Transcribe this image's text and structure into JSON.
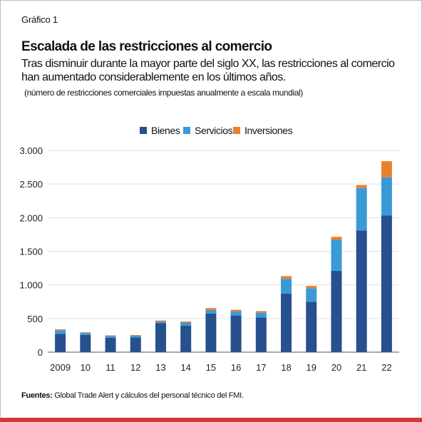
{
  "figure_label": "Gráfico 1",
  "title": "Escalada de las restricciones al comercio",
  "subtitle": "Tras disminuir durante la mayor parte del siglo XX, las restricciones al comercio han aumentado considerablemente en los últimos años.",
  "note": "(número de restricciones comerciales impuestas anualmente a escala mundial)",
  "source": {
    "label": "Fuentes:",
    "text": " Global Trade Alert y cálculos del personal técnico del FMI."
  },
  "colors": {
    "bienes": "#26508e",
    "servicios": "#3a9ad6",
    "inversiones": "#e8812d",
    "accent_bar": "#d7373a",
    "grid": "#e1e1e1",
    "frame": "#bdbdbd"
  },
  "chart_data": {
    "type": "bar",
    "stacked": true,
    "categories": [
      "2009",
      "10",
      "11",
      "12",
      "13",
      "14",
      "15",
      "16",
      "17",
      "18",
      "19",
      "20",
      "21",
      "22"
    ],
    "series": [
      {
        "name": "Bienes",
        "values": [
          270,
          255,
          215,
          220,
          430,
          395,
          575,
          545,
          515,
          870,
          750,
          1210,
          1810,
          2030
        ]
      },
      {
        "name": "Servicios",
        "values": [
          55,
          30,
          25,
          25,
          25,
          45,
          50,
          60,
          70,
          220,
          200,
          460,
          630,
          570
        ]
      },
      {
        "name": "Inversiones",
        "values": [
          15,
          10,
          10,
          10,
          15,
          15,
          30,
          25,
          25,
          40,
          35,
          45,
          45,
          240
        ]
      }
    ],
    "ylim": [
      0,
      3000
    ],
    "yticks": [
      0,
      500,
      1000,
      1500,
      2000,
      2500,
      3000
    ],
    "ytick_labels": [
      "0",
      "500",
      "1.000",
      "1.500",
      "2.000",
      "2.500",
      "3.000"
    ],
    "grid": true,
    "legend_position": "top-center"
  }
}
